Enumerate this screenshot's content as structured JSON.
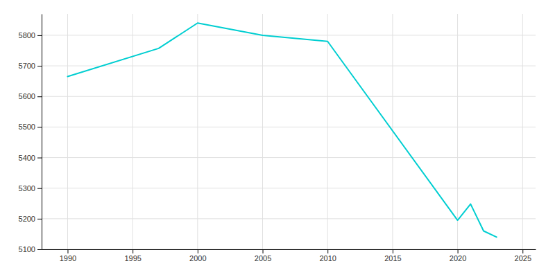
{
  "chart_data": {
    "type": "line",
    "x": [
      1990,
      1997,
      2000,
      2005,
      2010,
      2020,
      2021,
      2022,
      2023
    ],
    "values": [
      5665,
      5757,
      5840,
      5800,
      5780,
      5195,
      5248,
      5160,
      5140
    ],
    "color": "#00CED1",
    "xlim": [
      1988,
      2026
    ],
    "ylim": [
      5100,
      5870
    ],
    "xticks": [
      1990,
      1995,
      2000,
      2005,
      2010,
      2015,
      2020,
      2025
    ],
    "yticks": [
      5100,
      5200,
      5300,
      5400,
      5500,
      5600,
      5700,
      5800
    ],
    "grid": true
  }
}
